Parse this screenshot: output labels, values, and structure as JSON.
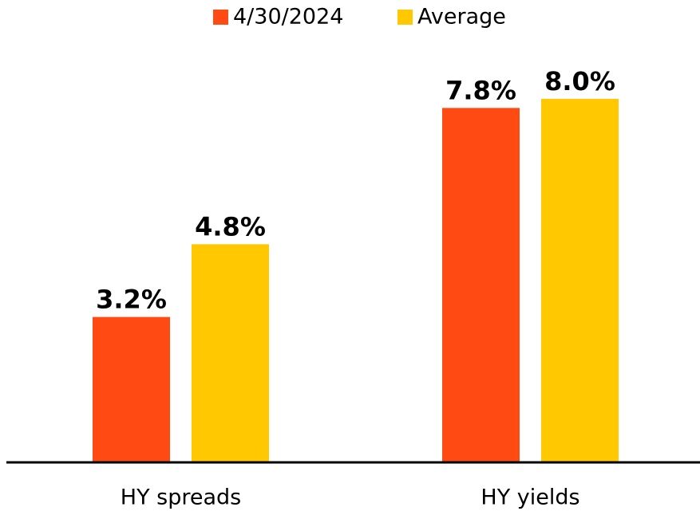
{
  "chart_data": {
    "type": "bar",
    "categories": [
      "HY spreads",
      "HY yields"
    ],
    "series": [
      {
        "name": "4/30/2024",
        "color": "#ff4a14",
        "values": [
          3.2,
          7.8
        ],
        "value_labels": [
          "3.2%",
          "7.8%"
        ]
      },
      {
        "name": "Average",
        "color": "#ffc800",
        "values": [
          4.8,
          8.0
        ],
        "value_labels": [
          "4.8%",
          "8.0%"
        ]
      }
    ],
    "legend": "top"
  }
}
